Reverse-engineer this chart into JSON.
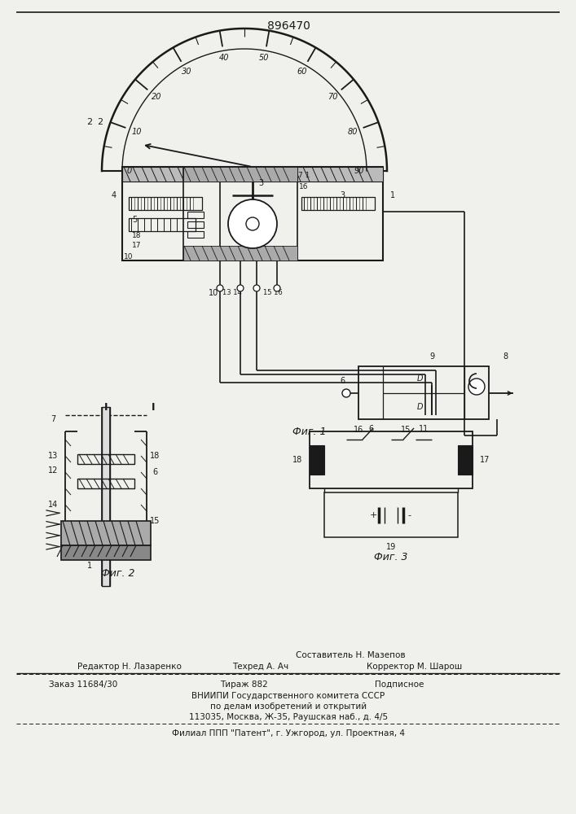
{
  "patent_number": "896470",
  "bg_color": "#f0f0ec",
  "line_color": "#1a1a1a",
  "fig_width": 7.07,
  "fig_height": 10.0,
  "bottom_texts": {
    "sostavitel": "Составитель Н. Мазепов",
    "redaktor_label": "Редактор Н. Лазаренко",
    "tehred_label": "Техред А. Ач",
    "korrektor_label": "Корректор М. Шарош",
    "zakaz": "Заказ 11684/30",
    "tiraz": "Тираж 882",
    "podpisnoe": "Подписное",
    "vnipi_line1": "ВНИИПИ Государственного комитета СССР",
    "vnipi_line2": "по делам изобретений и открытий",
    "vnipi_line3": "113035, Москва, Ж-35, Раушская наб., д. 4/5",
    "filial": "Филиал ППП \"Патент\", г. Ужгород, ул. Проектная, 4"
  },
  "fig1_caption": "Фиг. 1",
  "fig2_caption": "Фиг. 2",
  "fig3_caption": "Фиг. 3"
}
